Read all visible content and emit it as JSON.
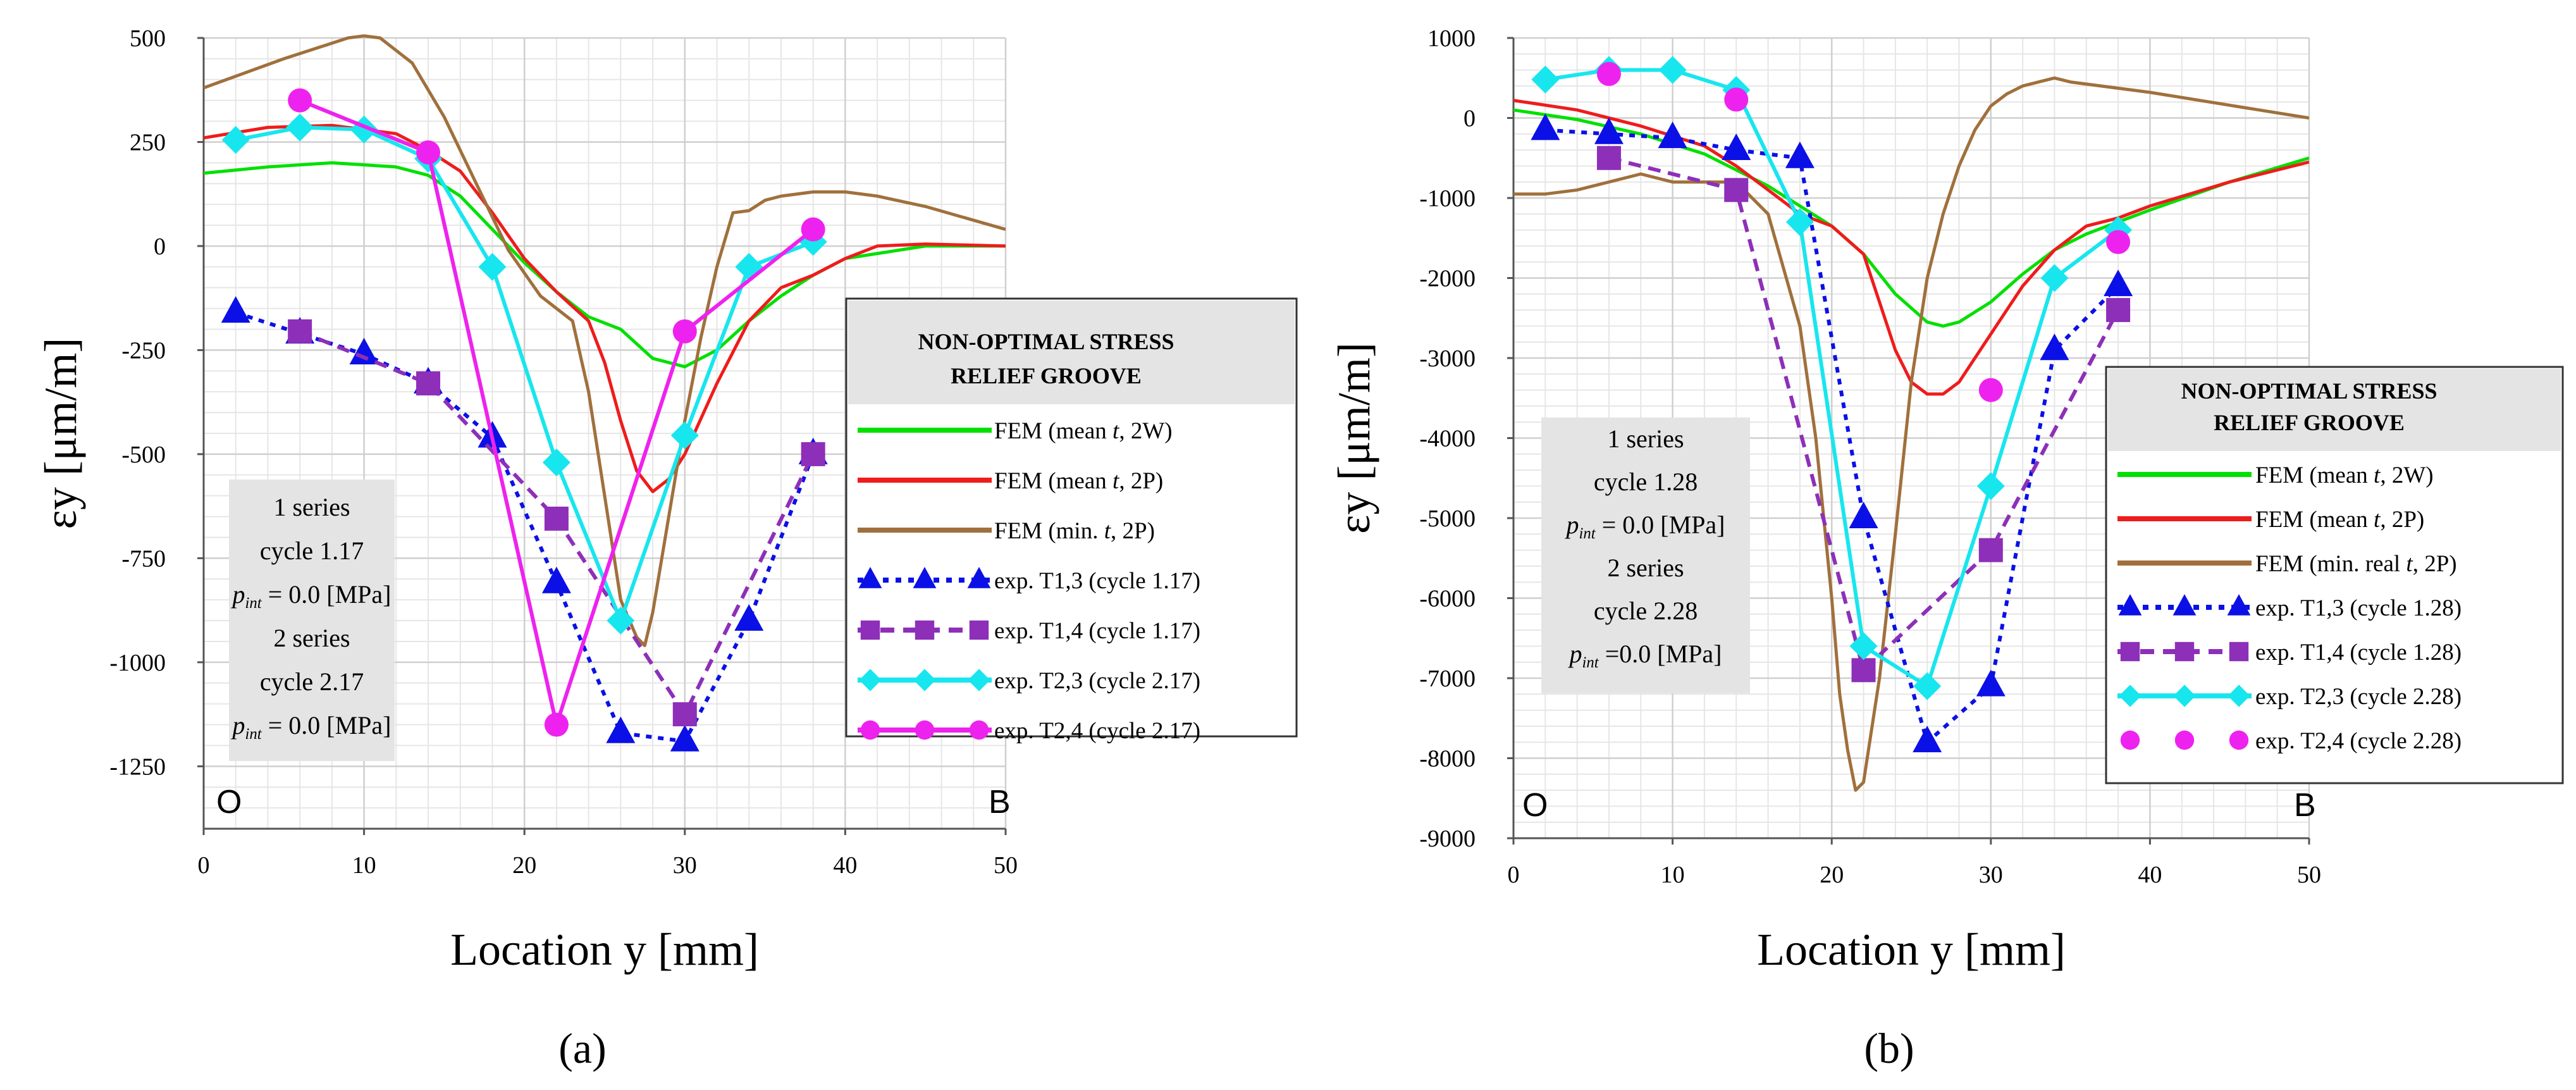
{
  "chart_data": [
    {
      "panel_label": "(a)",
      "type": "line",
      "xlabel": "Location y [mm]",
      "ylabel": "εy [μm/m]",
      "xlim": [
        0,
        50
      ],
      "ylim": [
        -1400,
        500
      ],
      "xticks": [
        0,
        10,
        20,
        30,
        40,
        50
      ],
      "yticks": [
        500,
        250,
        0,
        -250,
        -500,
        -750,
        -1000,
        -1250
      ],
      "grid": true,
      "corner_labels": [
        "O",
        "B"
      ],
      "legend_position": "right",
      "legend_title": [
        "NON-OPTIMAL STRESS",
        "RELIEF GROOVE"
      ],
      "info_box": {
        "lines": [
          "1 series",
          "cycle 1.17",
          "pint = 0.0 [MPa]",
          "2 series",
          "cycle 2.17",
          "pint = 0.0 [MPa]"
        ]
      },
      "series": [
        {
          "name": "FEM (mean t, 2W)",
          "color": "#00e000",
          "style": "solid",
          "x": [
            0,
            4,
            8,
            12,
            14,
            16,
            18,
            20,
            22,
            24,
            26,
            28,
            30,
            32,
            34,
            36,
            38,
            40,
            45,
            50
          ],
          "y": [
            175,
            190,
            200,
            190,
            170,
            120,
            40,
            -40,
            -110,
            -170,
            -200,
            -270,
            -290,
            -250,
            -180,
            -120,
            -70,
            -30,
            0,
            0
          ]
        },
        {
          "name": "FEM (mean t, 2P)",
          "color": "#ee1c1c",
          "style": "solid",
          "x": [
            0,
            4,
            8,
            12,
            14,
            16,
            18,
            20,
            22,
            24,
            25,
            26,
            27,
            28,
            29,
            30,
            32,
            34,
            36,
            38,
            40,
            42,
            45,
            50
          ],
          "y": [
            260,
            285,
            290,
            270,
            230,
            180,
            80,
            -30,
            -110,
            -180,
            -280,
            -420,
            -540,
            -590,
            -560,
            -500,
            -330,
            -180,
            -100,
            -70,
            -30,
            0,
            5,
            0
          ]
        },
        {
          "name": "FEM (min. t, 2P)",
          "color": "#a0703c",
          "style": "solid",
          "x": [
            0,
            5,
            9,
            10,
            11,
            13,
            15,
            17,
            19,
            21,
            23,
            24,
            25,
            26,
            27,
            27.5,
            28,
            29,
            30,
            31,
            32,
            33,
            34,
            35,
            36,
            38,
            40,
            42,
            45,
            50
          ],
          "y": [
            380,
            450,
            500,
            505,
            500,
            440,
            310,
            150,
            -10,
            -120,
            -180,
            -350,
            -600,
            -850,
            -940,
            -960,
            -880,
            -650,
            -420,
            -220,
            -50,
            80,
            85,
            110,
            120,
            130,
            130,
            120,
            95,
            40
          ]
        },
        {
          "name": "exp. T1,3 (cycle 1.17)",
          "color": "#0b10e6",
          "style": "dotted",
          "marker": "triangle",
          "x": [
            2,
            6,
            10,
            14,
            18,
            22,
            26,
            30,
            34,
            38
          ],
          "y": [
            -160,
            -210,
            -260,
            -330,
            -460,
            -810,
            -1170,
            -1190,
            -900,
            -500
          ]
        },
        {
          "name": "exp. T1,4 (cycle 1.17)",
          "color": "#8d2fb8",
          "style": "dashed",
          "marker": "square",
          "x": [
            6,
            14,
            22,
            30,
            38
          ],
          "y": [
            -205,
            -330,
            -655,
            -1125,
            -500
          ]
        },
        {
          "name": "exp. T2,3 (cycle 2.17)",
          "color": "#18e6ee",
          "style": "solid",
          "marker": "diamond",
          "x": [
            2,
            6,
            10,
            14,
            18,
            22,
            26,
            30,
            34,
            38
          ],
          "y": [
            255,
            285,
            280,
            210,
            -50,
            -520,
            -900,
            -455,
            -50,
            10
          ]
        },
        {
          "name": "exp. T2,4 (cycle 2.17)",
          "color": "#ee22ee",
          "style": "solid",
          "marker": "circle",
          "x": [
            6,
            14,
            22,
            30,
            38
          ],
          "y": [
            350,
            225,
            -1150,
            -205,
            40
          ]
        }
      ]
    },
    {
      "panel_label": "(b)",
      "type": "line",
      "xlabel": "Location y [mm]",
      "ylabel": "εy [μm/m]",
      "xlim": [
        0,
        50
      ],
      "ylim": [
        -9000,
        1000
      ],
      "xticks": [
        0,
        10,
        20,
        30,
        40,
        50
      ],
      "yticks": [
        1000,
        0,
        -1000,
        -2000,
        -3000,
        -4000,
        -5000,
        -6000,
        -7000,
        -8000,
        -9000
      ],
      "grid": true,
      "corner_labels": [
        "O",
        "B"
      ],
      "legend_position": "right",
      "legend_title": [
        "NON-OPTIMAL STRESS",
        "RELIEF GROOVE"
      ],
      "info_box": {
        "lines": [
          "1 series",
          "cycle 1.28",
          "pint = 0.0 [MPa]",
          "2 series",
          "cycle 2.28",
          "pint =0.0 [MPa]"
        ]
      },
      "series": [
        {
          "name": "FEM (mean t, 2W)",
          "color": "#00e000",
          "style": "solid",
          "x": [
            0,
            4,
            8,
            12,
            14,
            16,
            18,
            20,
            22,
            24,
            26,
            27,
            28,
            30,
            32,
            34,
            36,
            38,
            40,
            45,
            50
          ],
          "y": [
            100,
            -20,
            -200,
            -450,
            -650,
            -850,
            -1100,
            -1350,
            -1700,
            -2200,
            -2550,
            -2600,
            -2550,
            -2300,
            -1950,
            -1650,
            -1450,
            -1300,
            -1150,
            -800,
            -500
          ]
        },
        {
          "name": "FEM (mean t, 2P)",
          "color": "#ee1c1c",
          "style": "solid",
          "x": [
            0,
            4,
            8,
            12,
            14,
            16,
            18,
            20,
            22,
            23,
            24,
            25,
            26,
            27,
            28,
            29,
            30,
            32,
            34,
            36,
            38,
            40,
            45,
            50
          ],
          "y": [
            220,
            100,
            -100,
            -350,
            -600,
            -900,
            -1200,
            -1350,
            -1700,
            -2300,
            -2900,
            -3300,
            -3450,
            -3450,
            -3300,
            -3000,
            -2700,
            -2100,
            -1650,
            -1350,
            -1250,
            -1100,
            -800,
            -550
          ]
        },
        {
          "name": "FEM (min. real t, 2P)",
          "color": "#a0703c",
          "style": "solid",
          "x": [
            0,
            2,
            4,
            6,
            8,
            10,
            12,
            14,
            16,
            18,
            19,
            20,
            20.5,
            21,
            21.5,
            22,
            23,
            24,
            25,
            26,
            27,
            28,
            29,
            30,
            31,
            32,
            33,
            34,
            35,
            40,
            45,
            50
          ],
          "y": [
            -950,
            -950,
            -900,
            -800,
            -700,
            -800,
            -800,
            -800,
            -1200,
            -2600,
            -4000,
            -6000,
            -7200,
            -7900,
            -8400,
            -8300,
            -7000,
            -5200,
            -3300,
            -2000,
            -1200,
            -600,
            -150,
            150,
            300,
            400,
            450,
            500,
            450,
            320,
            160,
            0
          ]
        },
        {
          "name": "exp. T1,3 (cycle 1.28)",
          "color": "#0b10e6",
          "style": "dotted",
          "marker": "triangle",
          "x": [
            2,
            6,
            10,
            14,
            18,
            22,
            26,
            30,
            34,
            38
          ],
          "y": [
            -150,
            -200,
            -250,
            -400,
            -500,
            -5000,
            -7800,
            -7100,
            -2900,
            -2100
          ]
        },
        {
          "name": "exp. T1,4 (cycle 1.28)",
          "color": "#8d2fb8",
          "style": "dashed",
          "marker": "square",
          "x": [
            6,
            14,
            22,
            30,
            38
          ],
          "y": [
            -500,
            -900,
            -6900,
            -5400,
            -2400
          ]
        },
        {
          "name": "exp. T2,3 (cycle 2.28)",
          "color": "#18e6ee",
          "style": "solid",
          "marker": "diamond",
          "x": [
            2,
            6,
            10,
            14,
            18,
            22,
            26,
            30,
            34,
            38
          ],
          "y": [
            480,
            600,
            600,
            350,
            -1300,
            -6600,
            -7100,
            -4600,
            -2000,
            -1400
          ]
        },
        {
          "name": "exp. T2,4 (cycle 2.28)",
          "color": "#ee22ee",
          "style": "none",
          "marker": "circle",
          "x": [
            6,
            14,
            30,
            38
          ],
          "y": [
            550,
            230,
            -3400,
            -1550
          ]
        }
      ]
    }
  ]
}
